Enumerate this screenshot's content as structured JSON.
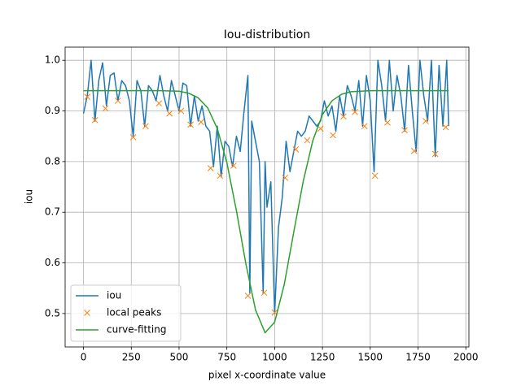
{
  "chart_data": {
    "type": "line",
    "title": "Iou-distribution",
    "xlabel": "pixel x-coordinate value",
    "ylabel": "iou",
    "xlim": [
      -96,
      2016
    ],
    "ylim": [
      0.434,
      1.026
    ],
    "xticks": [
      0,
      250,
      500,
      750,
      1000,
      1250,
      1500,
      1750,
      2000
    ],
    "yticks": [
      0.5,
      0.6,
      0.7,
      0.8,
      0.9,
      {
        "value": 1,
        "label": "1.0"
      }
    ],
    "grid": true,
    "legend": "lower left",
    "series": [
      {
        "name": "iou",
        "color": "#1f77b4",
        "style": "line",
        "x": [
          0,
          20,
          40,
          60,
          80,
          100,
          120,
          140,
          160,
          180,
          200,
          220,
          240,
          260,
          280,
          300,
          320,
          340,
          360,
          380,
          400,
          420,
          440,
          460,
          480,
          500,
          520,
          540,
          560,
          580,
          600,
          620,
          640,
          660,
          680,
          700,
          720,
          740,
          760,
          780,
          800,
          820,
          840,
          860,
          870,
          880,
          900,
          920,
          940,
          950,
          960,
          980,
          1000,
          1020,
          1040,
          1060,
          1080,
          1100,
          1120,
          1140,
          1160,
          1180,
          1200,
          1220,
          1240,
          1260,
          1280,
          1300,
          1320,
          1340,
          1360,
          1380,
          1400,
          1420,
          1440,
          1460,
          1480,
          1500,
          1520,
          1540,
          1560,
          1580,
          1600,
          1620,
          1640,
          1660,
          1680,
          1700,
          1720,
          1740,
          1760,
          1780,
          1800,
          1820,
          1840,
          1860,
          1880,
          1900,
          1910
        ],
        "values": [
          0.895,
          0.93,
          1.0,
          0.88,
          0.96,
          0.995,
          0.91,
          0.97,
          0.975,
          0.92,
          0.96,
          0.95,
          0.92,
          0.85,
          0.96,
          0.94,
          0.87,
          0.95,
          0.94,
          0.92,
          0.97,
          0.93,
          0.9,
          0.96,
          0.93,
          0.9,
          0.955,
          0.95,
          0.87,
          0.93,
          0.88,
          0.91,
          0.87,
          0.86,
          0.79,
          0.87,
          0.77,
          0.84,
          0.83,
          0.79,
          0.85,
          0.82,
          0.9,
          0.97,
          0.54,
          0.88,
          0.84,
          0.8,
          0.54,
          0.8,
          0.71,
          0.76,
          0.5,
          0.67,
          0.73,
          0.84,
          0.78,
          0.82,
          0.86,
          0.85,
          0.86,
          0.89,
          0.88,
          0.87,
          0.88,
          0.92,
          0.89,
          0.91,
          0.86,
          0.93,
          0.89,
          0.95,
          0.93,
          0.9,
          0.96,
          0.87,
          0.97,
          0.92,
          0.78,
          1.0,
          0.95,
          0.88,
          1.0,
          0.9,
          0.97,
          0.93,
          0.86,
          0.99,
          0.9,
          0.82,
          1.0,
          0.93,
          0.88,
          1.0,
          0.81,
          0.99,
          0.87,
          1.0,
          0.87
        ]
      },
      {
        "name": "local peaks",
        "color": "#ff7f0e",
        "style": "marker",
        "x": [
          20,
          60,
          115,
          180,
          260,
          325,
          395,
          450,
          510,
          560,
          615,
          665,
          715,
          785,
          860,
          945,
          1000,
          1055,
          1110,
          1170,
          1240,
          1305,
          1360,
          1420,
          1470,
          1525,
          1590,
          1680,
          1730,
          1790,
          1840,
          1895
        ],
        "values": [
          0.928,
          0.882,
          0.905,
          0.92,
          0.848,
          0.87,
          0.915,
          0.895,
          0.9,
          0.873,
          0.878,
          0.787,
          0.772,
          0.792,
          0.535,
          0.541,
          0.502,
          0.768,
          0.824,
          0.842,
          0.865,
          0.852,
          0.889,
          0.898,
          0.87,
          0.772,
          0.877,
          0.862,
          0.821,
          0.88,
          0.815,
          0.868
        ]
      },
      {
        "name": "curve-fitting",
        "color": "#2ca02c",
        "style": "line",
        "x": [
          0,
          100,
          200,
          300,
          400,
          500,
          550,
          600,
          650,
          700,
          750,
          800,
          850,
          900,
          950,
          1000,
          1050,
          1100,
          1150,
          1200,
          1250,
          1300,
          1350,
          1400,
          1500,
          1600,
          1700,
          1800,
          1910
        ],
        "values": [
          0.94,
          0.94,
          0.94,
          0.94,
          0.94,
          0.939,
          0.935,
          0.926,
          0.906,
          0.865,
          0.798,
          0.703,
          0.597,
          0.507,
          0.462,
          0.483,
          0.557,
          0.661,
          0.762,
          0.842,
          0.893,
          0.92,
          0.933,
          0.938,
          0.94,
          0.94,
          0.94,
          0.94,
          0.94
        ]
      }
    ]
  }
}
